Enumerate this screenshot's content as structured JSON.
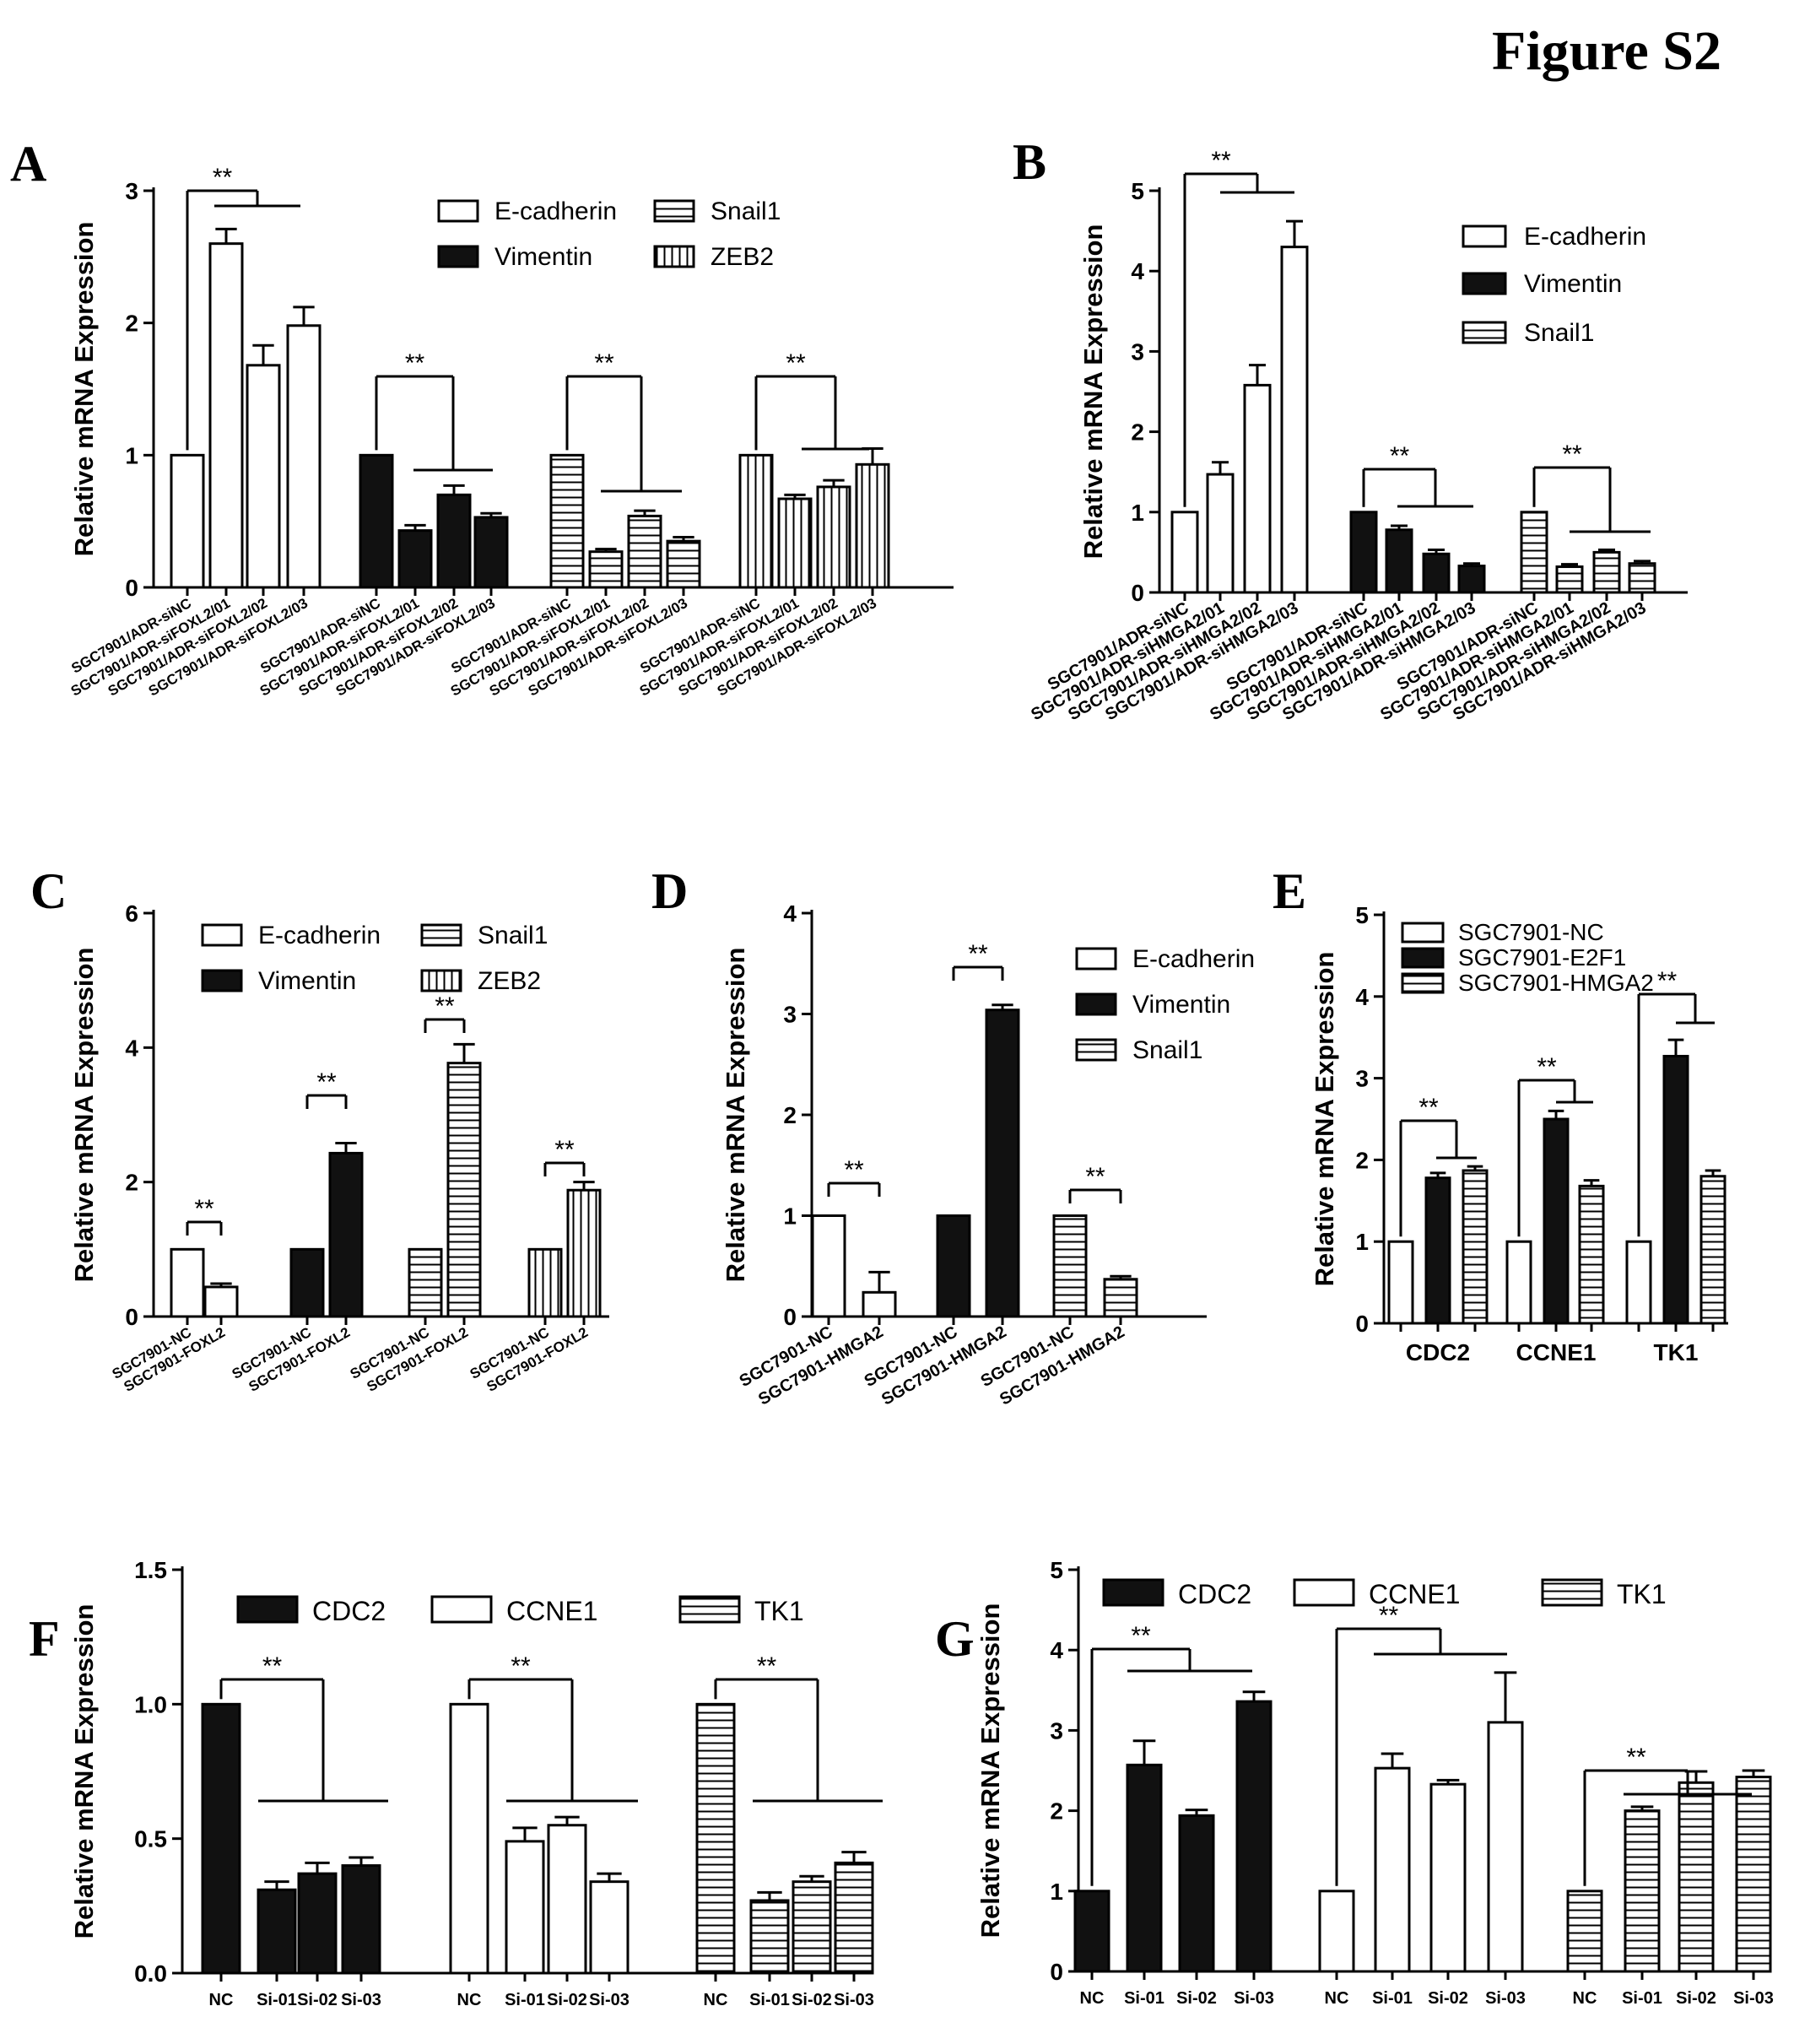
{
  "figure_title": "Figure S2",
  "chart_data": [
    {
      "panel": "A",
      "type": "bar",
      "ylabel": "Relative mRNA Expression",
      "ylim": [
        0,
        3
      ],
      "yticks": [
        "0",
        "1",
        "2",
        "3"
      ],
      "legend_placement": "top-right",
      "series": [
        {
          "name": "E-cadherin",
          "pattern": "open",
          "categories": [
            "SGC7901/ADR-siNC",
            "SGC7901/ADR-siFOXL2/01",
            "SGC7901/ADR-siFOXL2/02",
            "SGC7901/ADR-siFOXL2/03"
          ],
          "values": [
            1.0,
            2.6,
            1.68,
            1.98
          ],
          "errors": [
            0,
            0.11,
            0.15,
            0.14
          ]
        },
        {
          "name": "Vimentin",
          "pattern": "solid",
          "categories": [
            "SGC7901/ADR-siNC",
            "SGC7901/ADR-siFOXL2/01",
            "SGC7901/ADR-siFOXL2/02",
            "SGC7901/ADR-siFOXL2/03"
          ],
          "values": [
            1.0,
            0.43,
            0.7,
            0.53
          ],
          "errors": [
            0,
            0.04,
            0.07,
            0.03
          ]
        },
        {
          "name": "Snail1",
          "pattern": "hstripe",
          "categories": [
            "SGC7901/ADR-siNC",
            "SGC7901/ADR-siFOXL2/01",
            "SGC7901/ADR-siFOXL2/02",
            "SGC7901/ADR-siFOXL2/03"
          ],
          "values": [
            1.0,
            0.27,
            0.54,
            0.35
          ],
          "errors": [
            0,
            0.02,
            0.04,
            0.03
          ]
        },
        {
          "name": "ZEB2",
          "pattern": "vstripe",
          "categories": [
            "SGC7901/ADR-siNC",
            "SGC7901/ADR-siFOXL2/01",
            "SGC7901/ADR-siFOXL2/02",
            "SGC7901/ADR-siFOXL2/03"
          ],
          "values": [
            1.0,
            0.67,
            0.76,
            0.93
          ],
          "errors": [
            0,
            0.03,
            0.05,
            0.12
          ]
        }
      ],
      "annotations": [
        {
          "series": 0,
          "text": "**"
        },
        {
          "series": 1,
          "text": "**"
        },
        {
          "series": 2,
          "text": "**"
        },
        {
          "series": 3,
          "text": "**"
        }
      ]
    },
    {
      "panel": "B",
      "type": "bar",
      "ylabel": "Relative mRNA Expression",
      "ylim": [
        0,
        5
      ],
      "yticks": [
        "0",
        "1",
        "2",
        "3",
        "4",
        "5"
      ],
      "legend_placement": "top-right",
      "series": [
        {
          "name": "E-cadherin",
          "pattern": "open",
          "categories": [
            "SGC7901/ADR-siNC",
            "SGC7901/ADR-siHMGA2/01",
            "SGC7901/ADR-siHMGA2/02",
            "SGC7901/ADR-siHMGA2/03"
          ],
          "values": [
            1.0,
            1.47,
            2.58,
            4.3
          ],
          "errors": [
            0,
            0.15,
            0.25,
            0.32
          ]
        },
        {
          "name": "Vimentin",
          "pattern": "solid",
          "categories": [
            "SGC7901/ADR-siNC",
            "SGC7901/ADR-siHMGA2/01",
            "SGC7901/ADR-siHMGA2/02",
            "SGC7901/ADR-siHMGA2/03"
          ],
          "values": [
            1.0,
            0.78,
            0.48,
            0.33
          ],
          "errors": [
            0,
            0.05,
            0.05,
            0.03
          ]
        },
        {
          "name": "Snail1",
          "pattern": "hstripe",
          "categories": [
            "SGC7901/ADR-siNC",
            "SGC7901/ADR-siHMGA2/01",
            "SGC7901/ADR-siHMGA2/02",
            "SGC7901/ADR-siHMGA2/03"
          ],
          "values": [
            1.0,
            0.32,
            0.5,
            0.36
          ],
          "errors": [
            0,
            0.03,
            0.03,
            0.03
          ]
        }
      ],
      "annotations": [
        {
          "series": 0,
          "text": "**"
        },
        {
          "series": 1,
          "text": "**"
        },
        {
          "series": 2,
          "text": "**"
        }
      ]
    },
    {
      "panel": "C",
      "type": "bar",
      "ylabel": "Relative mRNA Expression",
      "ylim": [
        0,
        6
      ],
      "yticks": [
        "0",
        "2",
        "4",
        "6"
      ],
      "legend_placement": "top",
      "series": [
        {
          "name": "E-cadherin",
          "pattern": "open",
          "categories": [
            "SGC7901-NC",
            "SGC7901-FOXL2"
          ],
          "values": [
            1.0,
            0.44
          ],
          "errors": [
            0,
            0.05
          ]
        },
        {
          "name": "Vimentin",
          "pattern": "solid",
          "categories": [
            "SGC7901-NC",
            "SGC7901-FOXL2"
          ],
          "values": [
            1.0,
            2.43
          ],
          "errors": [
            0,
            0.15
          ]
        },
        {
          "name": "Snail1",
          "pattern": "hstripe",
          "categories": [
            "SGC7901-NC",
            "SGC7901-FOXL2"
          ],
          "values": [
            1.0,
            3.77
          ],
          "errors": [
            0,
            0.28
          ]
        },
        {
          "name": "ZEB2",
          "pattern": "vstripe",
          "categories": [
            "SGC7901-NC",
            "SGC7901-FOXL2"
          ],
          "values": [
            1.0,
            1.88
          ],
          "errors": [
            0,
            0.12
          ]
        }
      ],
      "annotations": [
        {
          "series": 0,
          "text": "**"
        },
        {
          "series": 1,
          "text": "**"
        },
        {
          "series": 2,
          "text": "**"
        },
        {
          "series": 3,
          "text": "**"
        }
      ]
    },
    {
      "panel": "D",
      "type": "bar",
      "ylabel": "Relative mRNA Expression",
      "ylim": [
        0,
        4
      ],
      "yticks": [
        "0",
        "1",
        "2",
        "3",
        "4"
      ],
      "legend_placement": "top-right",
      "series": [
        {
          "name": "E-cadherin",
          "pattern": "open",
          "categories": [
            "SGC7901-NC",
            "SGC7901-HMGA2"
          ],
          "values": [
            1.0,
            0.24
          ],
          "errors": [
            0,
            0.2
          ]
        },
        {
          "name": "Vimentin",
          "pattern": "solid",
          "categories": [
            "SGC7901-NC",
            "SGC7901-HMGA2"
          ],
          "values": [
            1.0,
            3.04
          ],
          "errors": [
            0,
            0.05
          ]
        },
        {
          "name": "Snail1",
          "pattern": "hstripe",
          "categories": [
            "SGC7901-NC",
            "SGC7901-HMGA2"
          ],
          "values": [
            1.0,
            0.37
          ],
          "errors": [
            0,
            0.03
          ]
        }
      ],
      "annotations": [
        {
          "series": 0,
          "text": "**"
        },
        {
          "series": 1,
          "text": "**"
        },
        {
          "series": 2,
          "text": "**"
        }
      ]
    },
    {
      "panel": "E",
      "type": "bar",
      "ylabel": "Relative mRNA Expression",
      "ylim": [
        0,
        5
      ],
      "yticks": [
        "0",
        "1",
        "2",
        "3",
        "4",
        "5"
      ],
      "legend_placement": "top",
      "legend": [
        "SGC7901-NC",
        "SGC7901-E2F1",
        "SGC7901-HMGA2"
      ],
      "categories": [
        "CDC2",
        "CCNE1",
        "TK1"
      ],
      "series": [
        {
          "name": "SGC7901-NC",
          "pattern": "open",
          "values": [
            1.0,
            1.0,
            1.0
          ],
          "errors": [
            0,
            0,
            0
          ]
        },
        {
          "name": "SGC7901-E2F1",
          "pattern": "solid",
          "values": [
            1.78,
            2.5,
            3.27
          ],
          "errors": [
            0.06,
            0.1,
            0.2
          ]
        },
        {
          "name": "SGC7901-HMGA2",
          "pattern": "hstripe",
          "values": [
            1.87,
            1.68,
            1.8
          ],
          "errors": [
            0.05,
            0.07,
            0.07
          ]
        }
      ],
      "annotations": [
        {
          "category": 0,
          "text": "**"
        },
        {
          "category": 1,
          "text": "**"
        },
        {
          "category": 2,
          "text": "**"
        }
      ]
    },
    {
      "panel": "F",
      "type": "bar",
      "ylabel": "Relative mRNA Expression",
      "ylim": [
        0,
        1.5
      ],
      "yticks": [
        "0.0",
        "0.5",
        "1.0",
        "1.5"
      ],
      "legend_placement": "top",
      "categories": [
        "NC",
        "Si-01",
        "Si-02",
        "Si-03"
      ],
      "series": [
        {
          "name": "CDC2",
          "pattern": "solid",
          "values": [
            1.0,
            0.31,
            0.37,
            0.4
          ],
          "errors": [
            0,
            0.03,
            0.04,
            0.03
          ]
        },
        {
          "name": "CCNE1",
          "pattern": "open",
          "values": [
            1.0,
            0.49,
            0.55,
            0.34
          ],
          "errors": [
            0,
            0.05,
            0.03,
            0.03
          ]
        },
        {
          "name": "TK1",
          "pattern": "hstripe",
          "values": [
            1.0,
            0.27,
            0.34,
            0.41
          ],
          "errors": [
            0,
            0.03,
            0.02,
            0.04
          ]
        }
      ],
      "annotations": [
        {
          "series": 0,
          "text": "**"
        },
        {
          "series": 1,
          "text": "**"
        },
        {
          "series": 2,
          "text": "**"
        }
      ]
    },
    {
      "panel": "G",
      "type": "bar",
      "ylabel": "Relative mRNA Expression",
      "ylim": [
        0,
        5
      ],
      "yticks": [
        "0",
        "1",
        "2",
        "3",
        "4",
        "5"
      ],
      "legend_placement": "top",
      "categories": [
        "NC",
        "Si-01",
        "Si-02",
        "Si-03"
      ],
      "series": [
        {
          "name": "CDC2",
          "pattern": "solid",
          "values": [
            1.0,
            2.57,
            1.94,
            3.36
          ],
          "errors": [
            0,
            0.3,
            0.07,
            0.12
          ]
        },
        {
          "name": "CCNE1",
          "pattern": "open",
          "values": [
            1.0,
            2.53,
            2.33,
            3.1
          ],
          "errors": [
            0,
            0.18,
            0.05,
            0.62
          ]
        },
        {
          "name": "TK1",
          "pattern": "hstripe",
          "values": [
            1.0,
            2.0,
            2.35,
            2.42
          ],
          "errors": [
            0,
            0.05,
            0.14,
            0.08
          ]
        }
      ],
      "annotations": [
        {
          "series": 0,
          "text": "**"
        },
        {
          "series": 1,
          "text": "**"
        },
        {
          "series": 2,
          "text": "**"
        }
      ]
    }
  ]
}
